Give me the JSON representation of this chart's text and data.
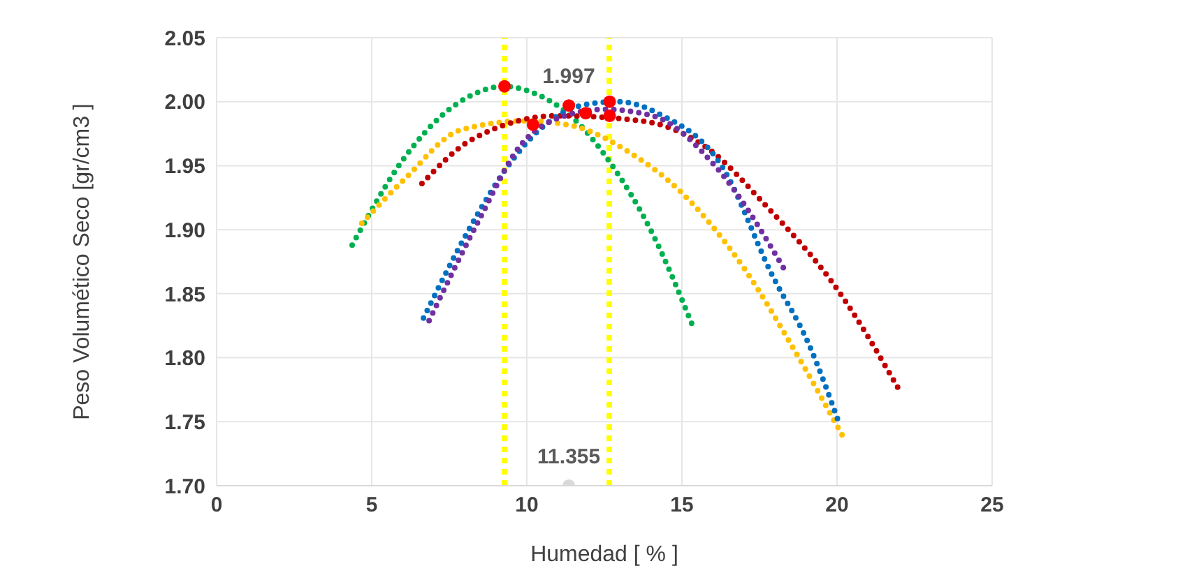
{
  "chart_data": {
    "type": "line",
    "xlabel": "Humedad [ % ]",
    "ylabel": "Peso Volumético Seco [gr/cm3 ]",
    "xlim": [
      0,
      25
    ],
    "xticks": [
      0,
      5,
      10,
      15,
      20,
      25
    ],
    "ylim": [
      1.7,
      2.05
    ],
    "yticks": [
      {
        "value": 1.7,
        "label": "1.70"
      },
      {
        "value": 1.75,
        "label": "1.75"
      },
      {
        "value": 1.8,
        "label": "1.80"
      },
      {
        "value": 1.85,
        "label": "1.85"
      },
      {
        "value": 1.9,
        "label": "1.90"
      },
      {
        "value": 1.95,
        "label": "1.95"
      },
      {
        "value": 2.0,
        "label": "2.00"
      },
      {
        "value": 2.05,
        "label": "2.05"
      }
    ],
    "grid": true,
    "line_style": "dotted",
    "marker": "none",
    "series": [
      {
        "color": "#00b050",
        "x": [
          4.37,
          6.08,
          7.3,
          8.3,
          9.28,
          10.3,
          11.5,
          12.7,
          14.05,
          15.36
        ],
        "values": [
          1.888,
          1.957,
          1.99,
          2.006,
          2.012,
          2.006,
          1.987,
          1.952,
          1.897,
          1.824
        ]
      },
      {
        "color": "#ffc000",
        "x": [
          4.68,
          6.08,
          7.88,
          10.0,
          11.5,
          13.2,
          14.9,
          17.0,
          18.55,
          20.2
        ],
        "values": [
          1.905,
          1.94,
          1.978,
          1.985,
          1.981,
          1.962,
          1.931,
          1.87,
          1.809,
          1.738
        ]
      },
      {
        "color": "#c00000",
        "x": [
          6.62,
          8.2,
          11.0,
          13.7,
          15.86,
          17.66,
          20.05,
          22.0
        ],
        "values": [
          1.936,
          1.97,
          1.989,
          1.985,
          1.963,
          1.92,
          1.852,
          1.775
        ]
      },
      {
        "color": "#0070c0",
        "x": [
          6.67,
          8.2,
          9.37,
          10.45,
          11.94,
          12.97,
          14.3,
          16.3,
          17.9,
          19.1,
          20.05
        ],
        "values": [
          1.831,
          1.903,
          1.949,
          1.979,
          1.998,
          2.0,
          1.99,
          1.949,
          1.865,
          1.81,
          1.75
        ]
      },
      {
        "color": "#7030a0",
        "x": [
          6.85,
          8.47,
          9.8,
          11.0,
          12.5,
          14.05,
          16.1,
          18.4
        ],
        "values": [
          1.829,
          1.908,
          1.966,
          1.987,
          1.994,
          1.989,
          1.949,
          1.865
        ]
      },
      {
        "type": "scatter",
        "marker": "circle",
        "color": "#ff0000",
        "x": [
          9.28,
          10.2,
          11.355,
          11.9,
          12.67,
          12.67
        ],
        "values": [
          2.012,
          1.982,
          1.997,
          1.991,
          2.0,
          1.989
        ]
      },
      {
        "type": "scatter",
        "marker": "circle",
        "color": "#d9d9d9",
        "x": [
          11.355
        ],
        "values": [
          1.7
        ]
      }
    ],
    "ref_lines": [
      {
        "axis": "x",
        "value": 9.28,
        "color": "#ffff00",
        "line_style": "dotted"
      },
      {
        "axis": "x",
        "value": 12.66,
        "color": "#ffff00",
        "line_style": "dotted"
      }
    ],
    "annotations": [
      {
        "text": "1.997",
        "x": 11.355,
        "y": 1.997
      },
      {
        "text": "11.355",
        "x": 11.355,
        "y": 1.7
      }
    ]
  }
}
